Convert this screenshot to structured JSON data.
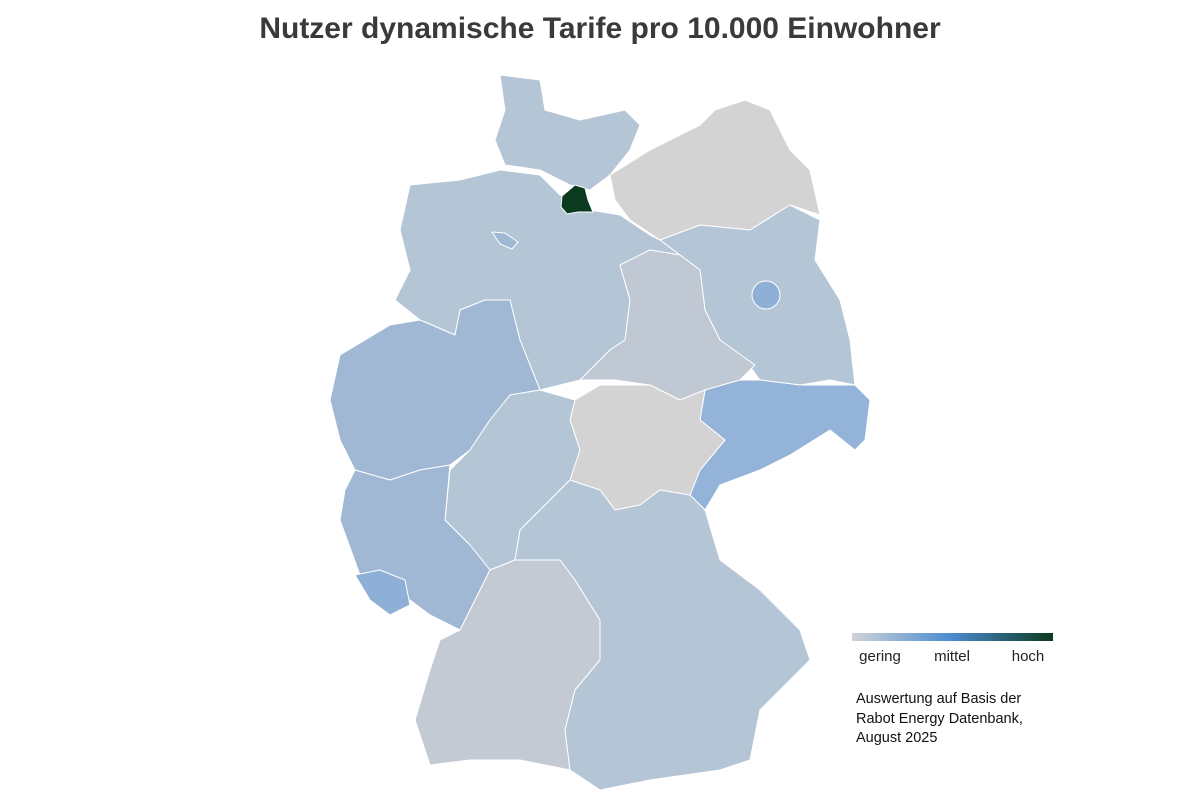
{
  "header": {
    "title": "Nutzer dynamische Tarife pro 10.000 Einwohner"
  },
  "legend": {
    "labels": [
      "gering",
      "mittel",
      "hoch"
    ]
  },
  "note": {
    "lines": [
      "Auswertung auf Basis der",
      "Rabot Energy Datenbank,",
      "August 2025"
    ]
  }
}
